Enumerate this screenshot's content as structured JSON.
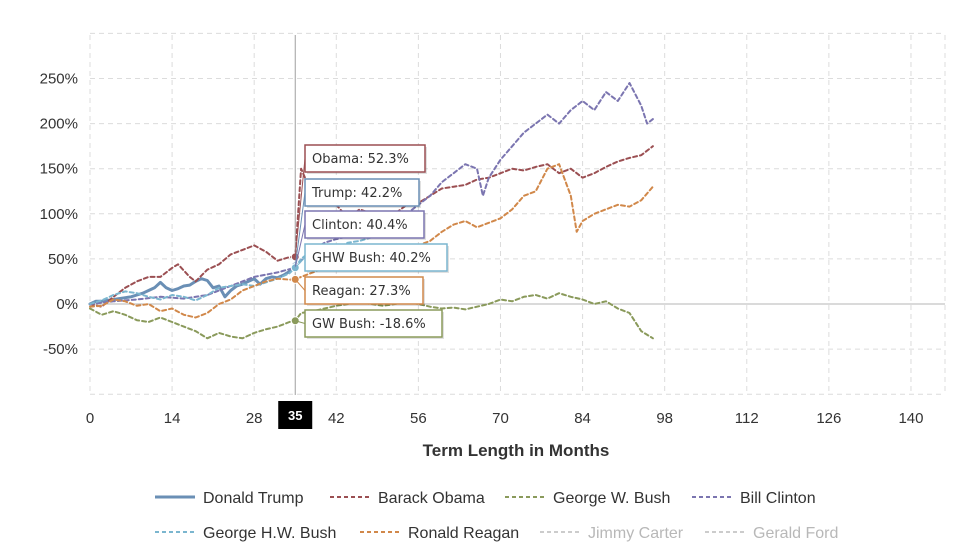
{
  "chart_data": {
    "type": "line",
    "title": "",
    "xlabel": "Term Length in Months",
    "ylabel": "",
    "xlim": [
      0,
      146
    ],
    "ylim": [
      -100,
      300
    ],
    "x_ticks": [
      0,
      14,
      28,
      42,
      56,
      70,
      84,
      98,
      112,
      126,
      140
    ],
    "x_tick_labels": [
      "0",
      "14",
      "28",
      "42",
      "56",
      "70",
      "84",
      "98",
      "112",
      "126",
      "140"
    ],
    "y_ticks": [
      -50,
      0,
      50,
      100,
      150,
      200,
      250
    ],
    "y_tick_labels": [
      "-50%",
      "0%",
      "50%",
      "100%",
      "150%",
      "200%",
      "250%"
    ],
    "cursor": {
      "x": 35,
      "label": "35"
    },
    "series": [
      {
        "name": "Donald Trump",
        "color": "#6a8fb5",
        "dash": "solid",
        "enabled": true,
        "legend_row": 0,
        "points": [
          [
            0,
            0
          ],
          [
            1,
            3
          ],
          [
            2,
            3
          ],
          [
            3,
            4
          ],
          [
            4,
            5
          ],
          [
            5,
            6
          ],
          [
            6,
            7
          ],
          [
            7,
            8
          ],
          [
            8,
            10
          ],
          [
            9,
            12
          ],
          [
            10,
            15
          ],
          [
            11,
            18
          ],
          [
            12,
            24
          ],
          [
            13,
            18
          ],
          [
            14,
            15
          ],
          [
            15,
            17
          ],
          [
            16,
            20
          ],
          [
            17,
            21
          ],
          [
            18,
            25
          ],
          [
            19,
            28
          ],
          [
            20,
            26
          ],
          [
            21,
            18
          ],
          [
            22,
            20
          ],
          [
            23,
            8
          ],
          [
            24,
            15
          ],
          [
            25,
            20
          ],
          [
            26,
            22
          ],
          [
            27,
            25
          ],
          [
            28,
            28
          ],
          [
            29,
            22
          ],
          [
            30,
            28
          ],
          [
            31,
            30
          ],
          [
            32,
            29
          ],
          [
            33,
            32
          ],
          [
            34,
            36
          ],
          [
            35,
            42.2
          ]
        ]
      },
      {
        "name": "Barack Obama",
        "color": "#9b4f52",
        "dash": "dashed",
        "enabled": true,
        "legend_row": 0,
        "points": [
          [
            0,
            0
          ],
          [
            2,
            -3
          ],
          [
            4,
            8
          ],
          [
            6,
            18
          ],
          [
            8,
            25
          ],
          [
            10,
            30
          ],
          [
            12,
            30
          ],
          [
            14,
            40
          ],
          [
            15,
            44
          ],
          [
            17,
            30
          ],
          [
            18,
            25
          ],
          [
            20,
            38
          ],
          [
            22,
            44
          ],
          [
            24,
            55
          ],
          [
            26,
            60
          ],
          [
            28,
            65
          ],
          [
            30,
            58
          ],
          [
            32,
            48
          ],
          [
            34,
            52
          ],
          [
            35,
            52.3
          ],
          [
            36,
            150
          ],
          [
            38,
            120
          ],
          [
            40,
            115
          ],
          [
            42,
            110
          ],
          [
            44,
            95
          ],
          [
            46,
            105
          ],
          [
            48,
            100
          ],
          [
            50,
            90
          ],
          [
            52,
            100
          ],
          [
            54,
            110
          ],
          [
            56,
            112
          ],
          [
            58,
            120
          ],
          [
            60,
            128
          ],
          [
            62,
            130
          ],
          [
            64,
            132
          ],
          [
            66,
            138
          ],
          [
            68,
            140
          ],
          [
            70,
            145
          ],
          [
            72,
            150
          ],
          [
            74,
            148
          ],
          [
            76,
            152
          ],
          [
            78,
            155
          ],
          [
            80,
            145
          ],
          [
            82,
            150
          ],
          [
            84,
            140
          ],
          [
            86,
            145
          ],
          [
            88,
            152
          ],
          [
            90,
            158
          ],
          [
            92,
            162
          ],
          [
            94,
            165
          ],
          [
            96,
            175
          ]
        ]
      },
      {
        "name": "George W. Bush",
        "color": "#8a9a5b",
        "dash": "dashed",
        "enabled": true,
        "legend_row": 0,
        "points": [
          [
            0,
            -5
          ],
          [
            2,
            -12
          ],
          [
            4,
            -8
          ],
          [
            6,
            -12
          ],
          [
            8,
            -18
          ],
          [
            10,
            -20
          ],
          [
            12,
            -15
          ],
          [
            14,
            -20
          ],
          [
            16,
            -25
          ],
          [
            18,
            -30
          ],
          [
            20,
            -38
          ],
          [
            22,
            -32
          ],
          [
            24,
            -36
          ],
          [
            26,
            -38
          ],
          [
            28,
            -32
          ],
          [
            30,
            -28
          ],
          [
            32,
            -25
          ],
          [
            34,
            -20
          ],
          [
            35,
            -18.6
          ],
          [
            36,
            -10
          ],
          [
            38,
            -8
          ],
          [
            40,
            -5
          ],
          [
            42,
            -2
          ],
          [
            44,
            0
          ],
          [
            46,
            2
          ],
          [
            48,
            0
          ],
          [
            50,
            -2
          ],
          [
            52,
            0
          ],
          [
            54,
            2
          ],
          [
            56,
            0
          ],
          [
            58,
            -3
          ],
          [
            60,
            -5
          ],
          [
            62,
            -4
          ],
          [
            64,
            -6
          ],
          [
            66,
            -3
          ],
          [
            68,
            0
          ],
          [
            70,
            5
          ],
          [
            72,
            3
          ],
          [
            74,
            8
          ],
          [
            76,
            10
          ],
          [
            78,
            6
          ],
          [
            80,
            12
          ],
          [
            82,
            8
          ],
          [
            84,
            5
          ],
          [
            86,
            0
          ],
          [
            88,
            3
          ],
          [
            90,
            -5
          ],
          [
            92,
            -10
          ],
          [
            94,
            -30
          ],
          [
            96,
            -38
          ]
        ]
      },
      {
        "name": "Bill Clinton",
        "color": "#7b75b0",
        "dash": "dashed",
        "enabled": true,
        "legend_row": 0,
        "points": [
          [
            0,
            0
          ],
          [
            4,
            3
          ],
          [
            8,
            5
          ],
          [
            12,
            8
          ],
          [
            16,
            6
          ],
          [
            20,
            10
          ],
          [
            24,
            20
          ],
          [
            28,
            30
          ],
          [
            32,
            35
          ],
          [
            35,
            40.4
          ],
          [
            36,
            48
          ],
          [
            38,
            60
          ],
          [
            40,
            68
          ],
          [
            42,
            72
          ],
          [
            44,
            75
          ],
          [
            46,
            78
          ],
          [
            48,
            82
          ],
          [
            50,
            88
          ],
          [
            52,
            95
          ],
          [
            54,
            100
          ],
          [
            56,
            110
          ],
          [
            58,
            120
          ],
          [
            60,
            135
          ],
          [
            62,
            145
          ],
          [
            64,
            155
          ],
          [
            66,
            150
          ],
          [
            67,
            120
          ],
          [
            68,
            140
          ],
          [
            70,
            160
          ],
          [
            72,
            175
          ],
          [
            74,
            190
          ],
          [
            76,
            200
          ],
          [
            78,
            210
          ],
          [
            80,
            200
          ],
          [
            82,
            215
          ],
          [
            84,
            225
          ],
          [
            86,
            215
          ],
          [
            88,
            235
          ],
          [
            90,
            225
          ],
          [
            92,
            245
          ],
          [
            94,
            220
          ],
          [
            95,
            200
          ],
          [
            96,
            205
          ]
        ]
      },
      {
        "name": "George H.W. Bush",
        "color": "#7bb6cf",
        "dash": "dashed",
        "enabled": true,
        "legend_row": 1,
        "points": [
          [
            0,
            0
          ],
          [
            2,
            4
          ],
          [
            4,
            10
          ],
          [
            6,
            14
          ],
          [
            8,
            12
          ],
          [
            10,
            8
          ],
          [
            12,
            5
          ],
          [
            14,
            10
          ],
          [
            16,
            8
          ],
          [
            18,
            4
          ],
          [
            20,
            10
          ],
          [
            22,
            18
          ],
          [
            24,
            20
          ],
          [
            26,
            22
          ],
          [
            28,
            20
          ],
          [
            30,
            24
          ],
          [
            32,
            28
          ],
          [
            34,
            34
          ],
          [
            35,
            40.2
          ],
          [
            36,
            50
          ],
          [
            38,
            60
          ],
          [
            40,
            65
          ],
          [
            42,
            62
          ],
          [
            44,
            68
          ],
          [
            46,
            70
          ],
          [
            48,
            74
          ]
        ]
      },
      {
        "name": "Ronald Reagan",
        "color": "#d1884a",
        "dash": "dashed",
        "enabled": true,
        "legend_row": 1,
        "points": [
          [
            0,
            -3
          ],
          [
            2,
            -2
          ],
          [
            4,
            5
          ],
          [
            6,
            3
          ],
          [
            8,
            -2
          ],
          [
            10,
            0
          ],
          [
            12,
            -8
          ],
          [
            14,
            -5
          ],
          [
            16,
            -12
          ],
          [
            18,
            -15
          ],
          [
            20,
            -10
          ],
          [
            22,
            0
          ],
          [
            24,
            5
          ],
          [
            26,
            15
          ],
          [
            28,
            20
          ],
          [
            30,
            25
          ],
          [
            32,
            28
          ],
          [
            34,
            27
          ],
          [
            35,
            27.3
          ],
          [
            36,
            30
          ],
          [
            38,
            35
          ],
          [
            40,
            40
          ],
          [
            42,
            38
          ],
          [
            44,
            42
          ],
          [
            46,
            45
          ],
          [
            48,
            50
          ],
          [
            50,
            55
          ],
          [
            52,
            58
          ],
          [
            54,
            60
          ],
          [
            56,
            65
          ],
          [
            58,
            70
          ],
          [
            60,
            80
          ],
          [
            62,
            88
          ],
          [
            64,
            92
          ],
          [
            66,
            85
          ],
          [
            68,
            90
          ],
          [
            70,
            95
          ],
          [
            72,
            105
          ],
          [
            74,
            120
          ],
          [
            76,
            125
          ],
          [
            78,
            150
          ],
          [
            80,
            155
          ],
          [
            82,
            120
          ],
          [
            83,
            80
          ],
          [
            84,
            92
          ],
          [
            86,
            100
          ],
          [
            88,
            105
          ],
          [
            90,
            110
          ],
          [
            92,
            108
          ],
          [
            94,
            115
          ],
          [
            96,
            130
          ]
        ]
      },
      {
        "name": "Jimmy Carter",
        "color": "#cccccc",
        "dash": "dashed",
        "enabled": false,
        "legend_row": 1,
        "points": []
      },
      {
        "name": "Gerald Ford",
        "color": "#cccccc",
        "dash": "dashed",
        "enabled": false,
        "legend_row": 1,
        "points": []
      }
    ],
    "tooltips": [
      {
        "label": "Obama: 52.3%",
        "series": "Barack Obama",
        "color": "#9b4f52"
      },
      {
        "label": "Trump: 42.2%",
        "series": "Donald Trump",
        "color": "#6a8fb5"
      },
      {
        "label": "Clinton: 40.4%",
        "series": "Bill Clinton",
        "color": "#7b75b0"
      },
      {
        "label": "GHW Bush: 40.2%",
        "series": "George H.W. Bush",
        "color": "#7bb6cf"
      },
      {
        "label": "Reagan: 27.3%",
        "series": "Ronald Reagan",
        "color": "#d1884a"
      },
      {
        "label": "GW Bush: -18.6%",
        "series": "George W. Bush",
        "color": "#8a9a5b"
      }
    ]
  }
}
